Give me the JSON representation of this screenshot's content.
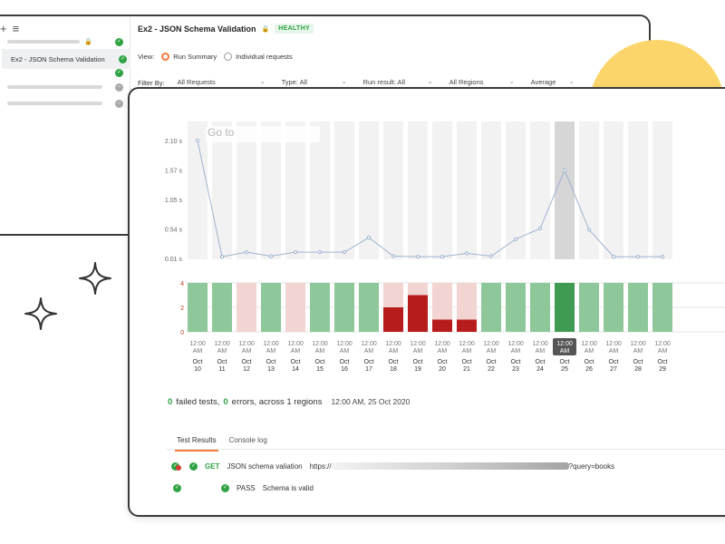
{
  "sidebar": {
    "selected_label": "Ex2 - JSON Schema Validation"
  },
  "header": {
    "title": "Ex2 - JSON Schema Validation",
    "status_badge": "HEALTHY"
  },
  "view": {
    "label": "View:",
    "options": [
      "Run Summary",
      "Individual requests"
    ],
    "selected": "Run Summary"
  },
  "filters": {
    "label": "Filter By:",
    "requests": "All Requests",
    "type": "Type: All",
    "run_result": "Run result: All",
    "regions": "All Regions",
    "aggregate": "Average"
  },
  "search": {
    "goto_placeholder": "Go to"
  },
  "chart_data": [
    {
      "type": "line",
      "title": "",
      "ylabel": "",
      "y_ticks": [
        "0.01 s",
        "0.54 s",
        "1.05 s",
        "1.57 s",
        "2.10 s"
      ],
      "ylim": [
        0.01,
        2.1
      ],
      "x": [
        "Oct 10",
        "Oct 11",
        "Oct 12",
        "Oct 13",
        "Oct 14",
        "Oct 15",
        "Oct 16",
        "Oct 17",
        "Oct 18",
        "Oct 19",
        "Oct 20",
        "Oct 21",
        "Oct 22",
        "Oct 23",
        "Oct 24",
        "Oct 25",
        "Oct 26",
        "Oct 27",
        "Oct 28",
        "Oct 29"
      ],
      "values": [
        2.1,
        0.04,
        0.12,
        0.05,
        0.12,
        0.12,
        0.12,
        0.38,
        0.05,
        0.04,
        0.04,
        0.1,
        0.05,
        0.35,
        0.54,
        1.57,
        0.52,
        0.04,
        0.04,
        0.04
      ],
      "highlighted": "Oct 25",
      "grid": true
    },
    {
      "type": "bar",
      "y_ticks": [
        "0",
        "2",
        "4"
      ],
      "ylim": [
        0,
        4
      ],
      "categories": [
        "Oct 10",
        "Oct 11",
        "Oct 12",
        "Oct 13",
        "Oct 14",
        "Oct 15",
        "Oct 16",
        "Oct 17",
        "Oct 18",
        "Oct 19",
        "Oct 20",
        "Oct 21",
        "Oct 22",
        "Oct 23",
        "Oct 24",
        "Oct 25",
        "Oct 26",
        "Oct 27",
        "Oct 28",
        "Oct 29"
      ],
      "series": [
        {
          "status": "pass",
          "values": [
            4,
            4,
            0,
            4,
            0,
            4,
            4,
            4,
            0,
            0,
            0,
            0,
            4,
            4,
            4,
            4,
            4,
            4,
            4,
            4
          ]
        },
        {
          "status": "fail",
          "values": [
            0,
            0,
            0,
            0,
            0,
            0,
            0,
            0,
            2,
            3,
            1,
            1,
            0,
            0,
            0,
            0,
            0,
            0,
            0,
            0
          ]
        },
        {
          "status": "partial",
          "values": [
            0,
            0,
            4,
            0,
            4,
            0,
            0,
            0,
            2,
            1,
            3,
            3,
            0,
            0,
            0,
            0,
            0,
            0,
            0,
            0
          ]
        }
      ],
      "time_labels": [
        "12:00",
        "AM"
      ],
      "month_labels": [
        "Oct",
        "Oct",
        "Oct",
        "Oct",
        "Oct",
        "Oct",
        "Oct",
        "Oct",
        "Oct",
        "Oct",
        "Oct",
        "Oct",
        "Oct",
        "Oct",
        "Oct",
        "Oct",
        "Oct",
        "Oct",
        "Oct",
        "Oct"
      ],
      "day_labels": [
        "10",
        "11",
        "12",
        "13",
        "14",
        "15",
        "16",
        "17",
        "18",
        "19",
        "20",
        "21",
        "22",
        "23",
        "24",
        "25",
        "26",
        "27",
        "28",
        "29"
      ],
      "highlighted": "Oct 25",
      "colors": {
        "pass": "#8ec799",
        "pass_selected": "#3f9a52",
        "fail": "#b71c1c",
        "partial": "#f2d4d2"
      }
    }
  ],
  "summary": {
    "failed_count": "0",
    "failed_text": "failed tests,",
    "errors_count": "0",
    "errors_text": "errors, across 1 regions",
    "timestamp": "12:00 AM, 25 Oct 2020"
  },
  "tabs": [
    "Test Results",
    "Console log"
  ],
  "request": {
    "method": "GET",
    "name": "JSON schema valiation",
    "url_prefix": "https://",
    "url_suffix": "?query=books"
  },
  "test": {
    "result": "PASS",
    "name": "Schema is valid"
  },
  "colors": {
    "accent": "#f37b3a",
    "success": "#2fa343",
    "highlight": "#fcd56a"
  }
}
